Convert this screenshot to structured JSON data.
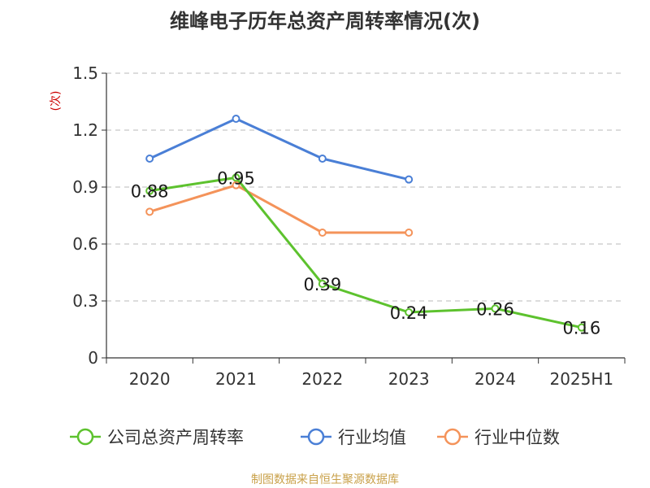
{
  "title": "维峰电子历年总资产周转率情况(次)",
  "source": "制图数据来自恒生聚源数据库",
  "chart_data": {
    "type": "line",
    "title": "维峰电子历年总资产周转率情况(次)",
    "ylabel": "(次)",
    "xlabel": "",
    "categories": [
      "2020",
      "2021",
      "2022",
      "2023",
      "2024",
      "2025H1"
    ],
    "yticks": [
      "0",
      "0.3",
      "0.6",
      "0.9",
      "1.2",
      "1.5"
    ],
    "ylim": [
      0,
      1.5
    ],
    "grid": true,
    "legend_position": "bottom",
    "series": [
      {
        "name": "公司总资产周转率",
        "color": "#5dc22e",
        "values": [
          0.88,
          0.95,
          0.39,
          0.24,
          0.26,
          0.16
        ],
        "labels": [
          "0.88",
          "0.95",
          "0.39",
          "0.24",
          "0.26",
          "0.16"
        ]
      },
      {
        "name": "行业均值",
        "color": "#4a7fd6",
        "values": [
          1.05,
          1.26,
          1.05,
          0.94,
          null,
          null
        ]
      },
      {
        "name": "行业中位数",
        "color": "#f4935a",
        "values": [
          0.77,
          0.91,
          0.66,
          0.66,
          null,
          null
        ]
      }
    ]
  }
}
